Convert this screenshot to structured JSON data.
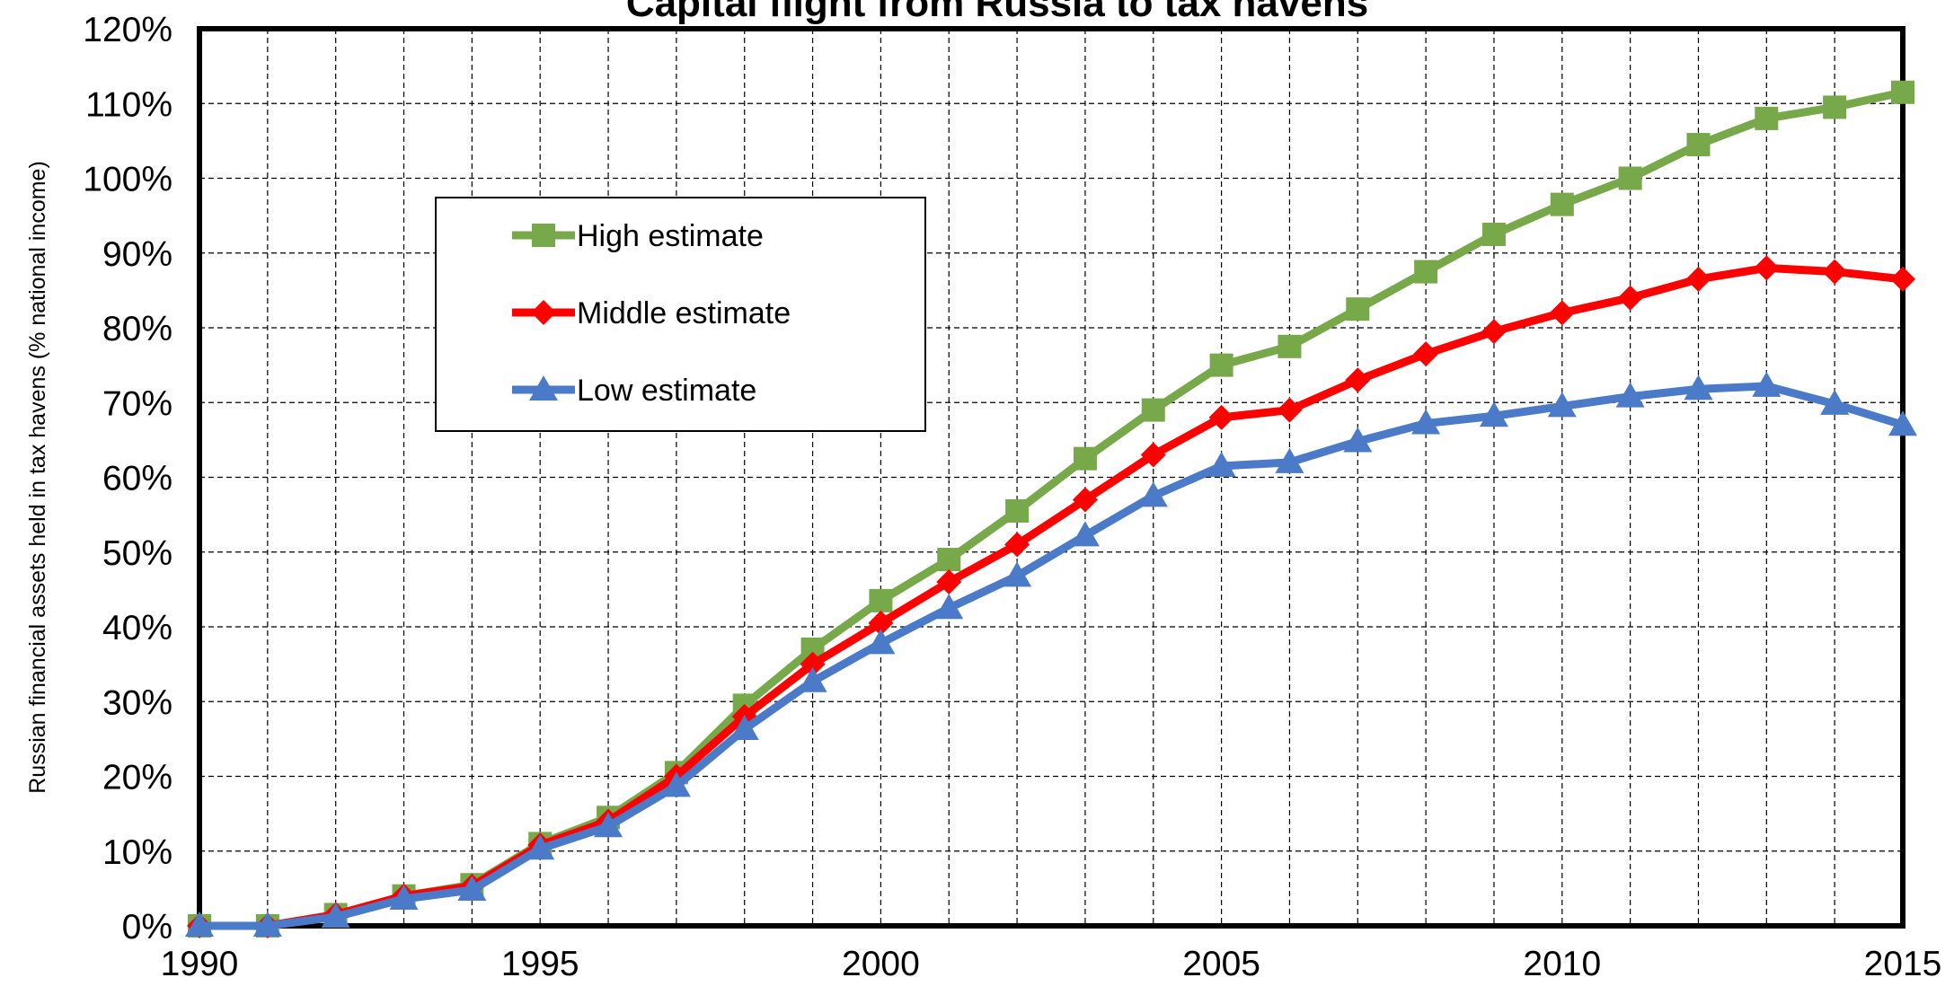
{
  "chart_data": {
    "type": "line",
    "title": "Capital flight from Russia to tax havens",
    "xlabel": "",
    "ylabel": "Russian financial assets held in tax havens (% national income)",
    "x": [
      1990,
      1991,
      1992,
      1993,
      1994,
      1995,
      1996,
      1997,
      1998,
      1999,
      2000,
      2001,
      2002,
      2003,
      2004,
      2005,
      2006,
      2007,
      2008,
      2009,
      2010,
      2011,
      2012,
      2013,
      2014,
      2015
    ],
    "x_ticks": [
      1990,
      1995,
      2000,
      2005,
      2010,
      2015
    ],
    "x_tick_labels": [
      "1990",
      "1995",
      "2000",
      "2005",
      "2010",
      "2015"
    ],
    "xlim": [
      1990,
      2015
    ],
    "ylim": [
      0,
      120
    ],
    "y_ticks": [
      0,
      10,
      20,
      30,
      40,
      50,
      60,
      70,
      80,
      90,
      100,
      110,
      120
    ],
    "y_tick_labels": [
      "0%",
      "10%",
      "20%",
      "30%",
      "40%",
      "50%",
      "60%",
      "70%",
      "80%",
      "90%",
      "100%",
      "110%",
      "120%"
    ],
    "grid": true,
    "legend_position": "upper-left",
    "series": [
      {
        "name": "High estimate",
        "color": "#77a84a",
        "marker": "square",
        "values": [
          0,
          0,
          1.5,
          4,
          5.5,
          11,
          14.5,
          20.5,
          29.5,
          37,
          43.5,
          49,
          55.5,
          62.5,
          69,
          75,
          77.5,
          82.5,
          87.5,
          92.5,
          96.5,
          100,
          104.5,
          108,
          109.5,
          111.5
        ]
      },
      {
        "name": "Middle estimate",
        "color": "#ff0000",
        "marker": "diamond",
        "values": [
          0,
          0,
          1.5,
          4,
          5.3,
          10.8,
          14,
          20,
          28,
          35,
          40.5,
          46,
          51,
          57,
          63,
          68,
          69,
          73,
          76.5,
          79.5,
          82,
          84,
          86.5,
          88,
          87.5,
          86.5
        ]
      },
      {
        "name": "Low estimate",
        "color": "#4a7ac8",
        "marker": "triangle",
        "values": [
          0,
          0,
          1.2,
          3.6,
          4.8,
          10.3,
          13.3,
          18.7,
          26.3,
          32.7,
          37.8,
          42.5,
          46.8,
          52.2,
          57.5,
          61.5,
          62,
          64.8,
          67.2,
          68.2,
          69.5,
          70.8,
          71.8,
          72.2,
          69.8,
          67
        ]
      }
    ]
  }
}
